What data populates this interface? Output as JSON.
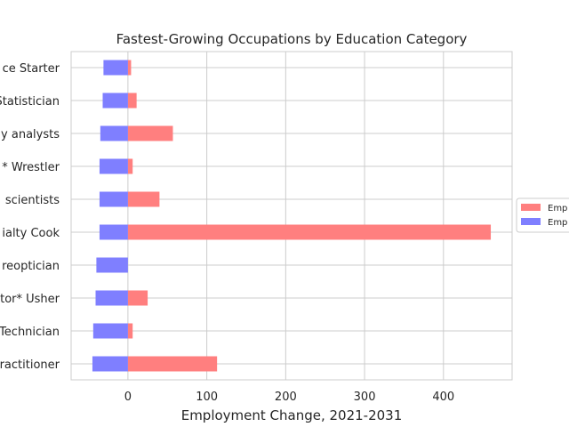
{
  "chart_data": {
    "type": "bar",
    "orientation": "horizontal",
    "title": "Fastest-Growing Occupations by Education Category",
    "xlabel": "Employment Change, 2021-2031",
    "ylabel": "",
    "xlim": [
      -72,
      487
    ],
    "xticks": [
      0,
      100,
      200,
      300,
      400
    ],
    "grid": true,
    "categories": [
      "ce Starter",
      "Statistician",
      "y analysts",
      "* Wrestler",
      " scientists",
      "ialty Cook",
      "reoptician",
      "tor* Usher",
      "Technician",
      "ractitioner"
    ],
    "series": [
      {
        "name": "Emp",
        "color": "#ff7f7f",
        "values": [
          4,
          11,
          57,
          6,
          40,
          460,
          0,
          25,
          6,
          113
        ]
      },
      {
        "name": "Emp",
        "color": "#7f7fff",
        "values": [
          -31,
          -32,
          -35,
          -36,
          -36,
          -36,
          -40,
          -41,
          -44,
          -45
        ]
      }
    ],
    "legend_position": "right"
  }
}
